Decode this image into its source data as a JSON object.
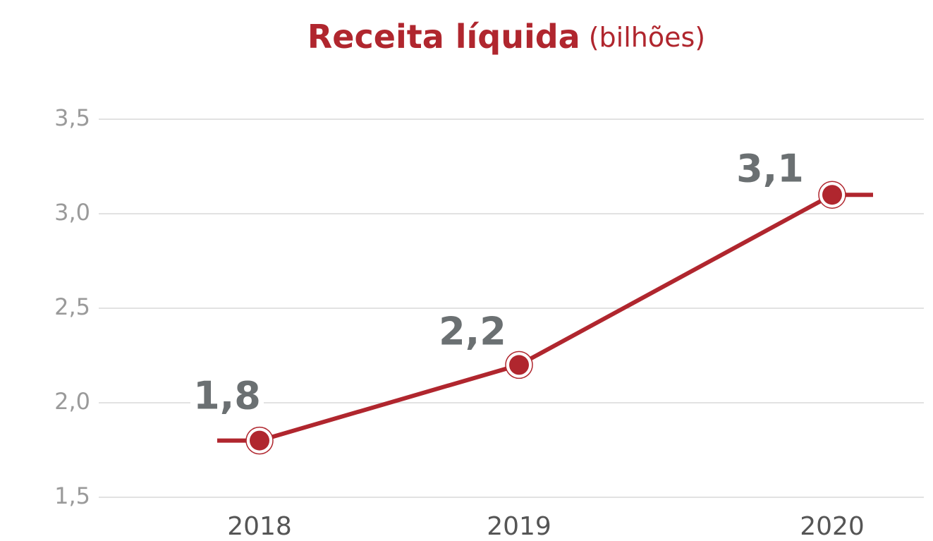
{
  "chart_data": {
    "type": "line",
    "title": "Receita líquida",
    "subtitle": "(bilhões)",
    "categories": [
      "2018",
      "2019",
      "2020"
    ],
    "values": [
      1.8,
      2.2,
      3.1
    ],
    "value_labels": [
      "1,8",
      "2,2",
      "3,1"
    ],
    "color": "#b0262e",
    "ylim": [
      1.5,
      3.5
    ],
    "yticks": [
      {
        "value": 1.5,
        "label": "1,5"
      },
      {
        "value": 2.0,
        "label": "2,0"
      },
      {
        "value": 2.5,
        "label": "2,5"
      },
      {
        "value": 3.0,
        "label": "3,0"
      },
      {
        "value": 3.5,
        "label": "3,5"
      }
    ],
    "grid": true
  }
}
